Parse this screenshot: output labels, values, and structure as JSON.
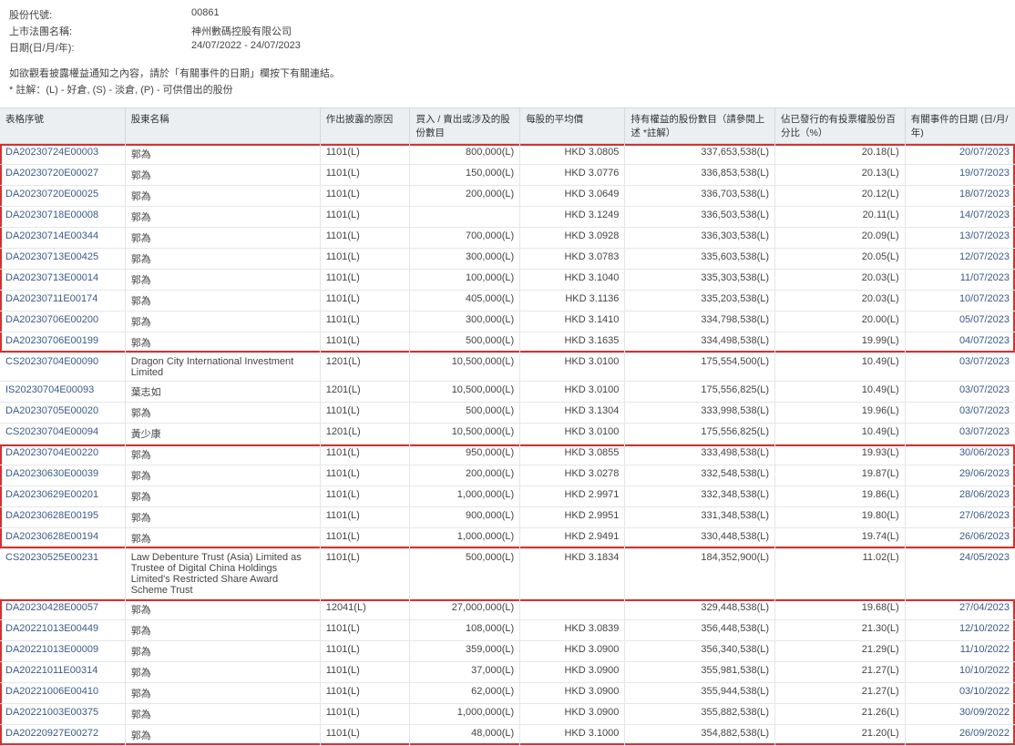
{
  "header": {
    "stock_code_label": "股份代號:",
    "stock_code": "00861",
    "company_label": "上市法團名稱:",
    "company": "神州數碼控股有限公司",
    "date_range_label": "日期(日/月/年):",
    "date_range": "24/07/2022 - 24/07/2023"
  },
  "notes": {
    "line1": "如欲觀看披露權益通知之內容，請於「有關事件的日期」欄按下有關連結。",
    "line2": "* 註解：(L) - 好倉, (S) - 淡倉, (P) - 可供借出的股份"
  },
  "columns": [
    "表格序號",
    "股東名稱",
    "作出披露的原因",
    "買入 / 賣出或涉及的股份數目",
    "每股的平均價",
    "持有權益的股份數目（請參閱上述 *註解）",
    "佔已發行的有投票權股份百分比（%）",
    "有關事件的日期 (日/月/年)"
  ],
  "rows": [
    {
      "id": "DA20230724E00003",
      "name": "郭為",
      "reason": "1101(L)",
      "shares": "800,000(L)",
      "price": "HKD 3.0805",
      "holding": "337,653,538(L)",
      "pct": "20.18(L)",
      "date": "20/07/2023",
      "grp": 1
    },
    {
      "id": "DA20230720E00027",
      "name": "郭為",
      "reason": "1101(L)",
      "shares": "150,000(L)",
      "price": "HKD 3.0776",
      "holding": "336,853,538(L)",
      "pct": "20.13(L)",
      "date": "19/07/2023",
      "grp": 1
    },
    {
      "id": "DA20230720E00025",
      "name": "郭為",
      "reason": "1101(L)",
      "shares": "200,000(L)",
      "price": "HKD 3.0649",
      "holding": "336,703,538(L)",
      "pct": "20.12(L)",
      "date": "18/07/2023",
      "grp": 1
    },
    {
      "id": "DA20230718E00008",
      "name": "郭為",
      "reason": "1101(L)",
      "shares": "",
      "price": "HKD 3.1249",
      "holding": "336,503,538(L)",
      "pct": "20.11(L)",
      "date": "14/07/2023",
      "grp": 1
    },
    {
      "id": "DA20230714E00344",
      "name": "郭為",
      "reason": "1101(L)",
      "shares": "700,000(L)",
      "price": "HKD 3.0928",
      "holding": "336,303,538(L)",
      "pct": "20.09(L)",
      "date": "13/07/2023",
      "grp": 1
    },
    {
      "id": "DA20230713E00425",
      "name": "郭為",
      "reason": "1101(L)",
      "shares": "300,000(L)",
      "price": "HKD 3.0783",
      "holding": "335,603,538(L)",
      "pct": "20.05(L)",
      "date": "12/07/2023",
      "grp": 1
    },
    {
      "id": "DA20230713E00014",
      "name": "郭為",
      "reason": "1101(L)",
      "shares": "100,000(L)",
      "price": "HKD 3.1040",
      "holding": "335,303,538(L)",
      "pct": "20.03(L)",
      "date": "11/07/2023",
      "grp": 1
    },
    {
      "id": "DA20230711E00174",
      "name": "郭為",
      "reason": "1101(L)",
      "shares": "405,000(L)",
      "price": "HKD 3.1136",
      "holding": "335,203,538(L)",
      "pct": "20.03(L)",
      "date": "10/07/2023",
      "grp": 1
    },
    {
      "id": "DA20230706E00200",
      "name": "郭為",
      "reason": "1101(L)",
      "shares": "300,000(L)",
      "price": "HKD 3.1410",
      "holding": "334,798,538(L)",
      "pct": "20.00(L)",
      "date": "05/07/2023",
      "grp": 1
    },
    {
      "id": "DA20230706E00199",
      "name": "郭為",
      "reason": "1101(L)",
      "shares": "500,000(L)",
      "price": "HKD 3.1635",
      "holding": "334,498,538(L)",
      "pct": "19.99(L)",
      "date": "04/07/2023",
      "grp": 1
    },
    {
      "id": "CS20230704E00090",
      "name": "Dragon City International Investment Limited",
      "reason": "1201(L)",
      "shares": "10,500,000(L)",
      "price": "HKD 3.0100",
      "holding": "175,554,500(L)",
      "pct": "10.49(L)",
      "date": "03/07/2023",
      "grp": 0,
      "wrap": true
    },
    {
      "id": "IS20230704E00093",
      "name": "葉志如",
      "reason": "1201(L)",
      "shares": "10,500,000(L)",
      "price": "HKD 3.0100",
      "holding": "175,556,825(L)",
      "pct": "10.49(L)",
      "date": "03/07/2023",
      "grp": 0
    },
    {
      "id": "DA20230705E00020",
      "name": "郭為",
      "reason": "1101(L)",
      "shares": "500,000(L)",
      "price": "HKD 3.1304",
      "holding": "333,998,538(L)",
      "pct": "19.96(L)",
      "date": "03/07/2023",
      "grp": 0
    },
    {
      "id": "CS20230704E00094",
      "name": "黃少康",
      "reason": "1201(L)",
      "shares": "10,500,000(L)",
      "price": "HKD 3.0100",
      "holding": "175,556,825(L)",
      "pct": "10.49(L)",
      "date": "03/07/2023",
      "grp": 0
    },
    {
      "id": "DA20230704E00220",
      "name": "郭為",
      "reason": "1101(L)",
      "shares": "950,000(L)",
      "price": "HKD 3.0855",
      "holding": "333,498,538(L)",
      "pct": "19.93(L)",
      "date": "30/06/2023",
      "grp": 2
    },
    {
      "id": "DA20230630E00039",
      "name": "郭為",
      "reason": "1101(L)",
      "shares": "200,000(L)",
      "price": "HKD 3.0278",
      "holding": "332,548,538(L)",
      "pct": "19.87(L)",
      "date": "29/06/2023",
      "grp": 2
    },
    {
      "id": "DA20230629E00201",
      "name": "郭為",
      "reason": "1101(L)",
      "shares": "1,000,000(L)",
      "price": "HKD 2.9971",
      "holding": "332,348,538(L)",
      "pct": "19.86(L)",
      "date": "28/06/2023",
      "grp": 2
    },
    {
      "id": "DA20230628E00195",
      "name": "郭為",
      "reason": "1101(L)",
      "shares": "900,000(L)",
      "price": "HKD 2.9951",
      "holding": "331,348,538(L)",
      "pct": "19.80(L)",
      "date": "27/06/2023",
      "grp": 2
    },
    {
      "id": "DA20230628E00194",
      "name": "郭為",
      "reason": "1101(L)",
      "shares": "1,000,000(L)",
      "price": "HKD 2.9491",
      "holding": "330,448,538(L)",
      "pct": "19.74(L)",
      "date": "26/06/2023",
      "grp": 2
    },
    {
      "id": "CS20230525E00231",
      "name": "Law Debenture Trust (Asia) Limited as Trustee of Digital China Holdings Limited's Restricted Share Award Scheme Trust",
      "reason": "1101(L)",
      "shares": "500,000(L)",
      "price": "HKD 3.1834",
      "holding": "184,352,900(L)",
      "pct": "11.02(L)",
      "date": "24/05/2023",
      "grp": 0,
      "wrap": true
    },
    {
      "id": "DA20230428E00057",
      "name": "郭為",
      "reason": "12041(L)",
      "shares": "27,000,000(L)",
      "price": "",
      "holding": "329,448,538(L)",
      "pct": "19.68(L)",
      "date": "27/04/2023",
      "grp": 3
    },
    {
      "id": "DA20221013E00449",
      "name": "郭為",
      "reason": "1101(L)",
      "shares": "108,000(L)",
      "price": "HKD 3.0839",
      "holding": "356,448,538(L)",
      "pct": "21.30(L)",
      "date": "12/10/2022",
      "grp": 3
    },
    {
      "id": "DA20221013E00009",
      "name": "郭為",
      "reason": "1101(L)",
      "shares": "359,000(L)",
      "price": "HKD 3.0900",
      "holding": "356,340,538(L)",
      "pct": "21.29(L)",
      "date": "11/10/2022",
      "grp": 3
    },
    {
      "id": "DA20221011E00314",
      "name": "郭為",
      "reason": "1101(L)",
      "shares": "37,000(L)",
      "price": "HKD 3.0900",
      "holding": "355,981,538(L)",
      "pct": "21.27(L)",
      "date": "10/10/2022",
      "grp": 3
    },
    {
      "id": "DA20221006E00410",
      "name": "郭為",
      "reason": "1101(L)",
      "shares": "62,000(L)",
      "price": "HKD 3.0900",
      "holding": "355,944,538(L)",
      "pct": "21.27(L)",
      "date": "03/10/2022",
      "grp": 3
    },
    {
      "id": "DA20221003E00375",
      "name": "郭為",
      "reason": "1101(L)",
      "shares": "1,000,000(L)",
      "price": "HKD 3.0900",
      "holding": "355,882,538(L)",
      "pct": "21.26(L)",
      "date": "30/09/2022",
      "grp": 3
    },
    {
      "id": "DA20220927E00272",
      "name": "郭為",
      "reason": "1101(L)",
      "shares": "48,000(L)",
      "price": "HKD 3.1000",
      "holding": "354,882,538(L)",
      "pct": "21.20(L)",
      "date": "26/09/2022",
      "grp": 3
    }
  ],
  "highlight_color": "#d93030",
  "header_bg": "#ebeff1",
  "border_color": "#e3e7ea"
}
